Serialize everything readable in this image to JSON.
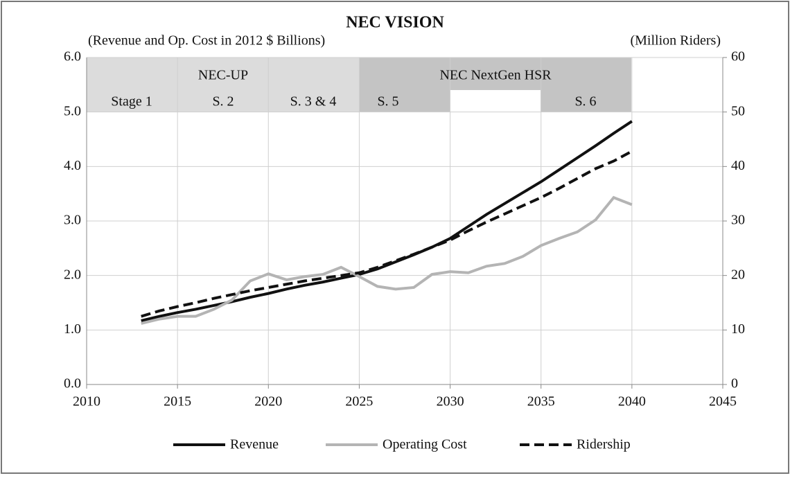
{
  "chart_data": {
    "type": "line",
    "title": "NEC VISION",
    "y_label": "(Revenue and Op. Cost in 2012 $ Billions)",
    "y2_label": "(Million Riders)",
    "annotations": [
      "Stage 1",
      "NEC-UP",
      "S. 2",
      "S. 3 & 4",
      "NEC NextGen HSR",
      "S. 5",
      "S. 6"
    ],
    "x": [
      2013,
      2014,
      2015,
      2016,
      2017,
      2018,
      2019,
      2020,
      2021,
      2022,
      2023,
      2024,
      2025,
      2026,
      2027,
      2028,
      2029,
      2030,
      2031,
      2032,
      2033,
      2034,
      2035,
      2036,
      2037,
      2038,
      2039,
      2040
    ],
    "series": [
      {
        "name": "Revenue",
        "color": "#111111",
        "style": "solid",
        "axis": "y",
        "values": [
          1.17,
          1.25,
          1.32,
          1.38,
          1.45,
          1.52,
          1.6,
          1.67,
          1.75,
          1.82,
          1.88,
          1.95,
          2.02,
          2.12,
          2.25,
          2.38,
          2.52,
          2.68,
          2.9,
          3.12,
          3.32,
          3.52,
          3.72,
          3.94,
          4.16,
          4.38,
          4.61,
          4.83
        ]
      },
      {
        "name": "Operating Cost",
        "color": "#b4b4b4",
        "style": "solid",
        "axis": "y",
        "values": [
          1.12,
          1.2,
          1.25,
          1.25,
          1.38,
          1.55,
          1.9,
          2.03,
          1.92,
          1.98,
          2.02,
          2.15,
          1.98,
          1.8,
          1.75,
          1.78,
          2.02,
          2.07,
          2.05,
          2.17,
          2.22,
          2.35,
          2.55,
          2.68,
          2.8,
          3.02,
          3.43,
          3.3
        ]
      },
      {
        "name": "Ridership",
        "color": "#111111",
        "style": "dashed",
        "axis": "y2",
        "values": [
          12.5,
          13.5,
          14.3,
          15.0,
          15.8,
          16.5,
          17.2,
          17.8,
          18.4,
          19.0,
          19.5,
          20.0,
          20.5,
          21.5,
          22.7,
          23.9,
          25.2,
          26.5,
          28.2,
          29.8,
          31.3,
          32.8,
          34.3,
          36.0,
          37.8,
          39.6,
          41.0,
          42.8
        ]
      }
    ],
    "xlim": [
      2010,
      2045
    ],
    "xticks": [
      2010,
      2015,
      2020,
      2025,
      2030,
      2035,
      2040,
      2045
    ],
    "ylim": [
      0,
      6
    ],
    "yticks": [
      {
        "value": 0,
        "label": "0.0"
      },
      {
        "value": 1,
        "label": "1.0"
      },
      {
        "value": 2,
        "label": "2.0"
      },
      {
        "value": 3,
        "label": "3.0"
      },
      {
        "value": 4,
        "label": "4.0"
      },
      {
        "value": 5,
        "label": "5.0"
      },
      {
        "value": 6,
        "label": "6.0"
      }
    ],
    "y2lim": [
      0,
      60
    ],
    "y2ticks": [
      0,
      10,
      20,
      30,
      40,
      50,
      60
    ],
    "grid": true,
    "legend": "bottom"
  }
}
